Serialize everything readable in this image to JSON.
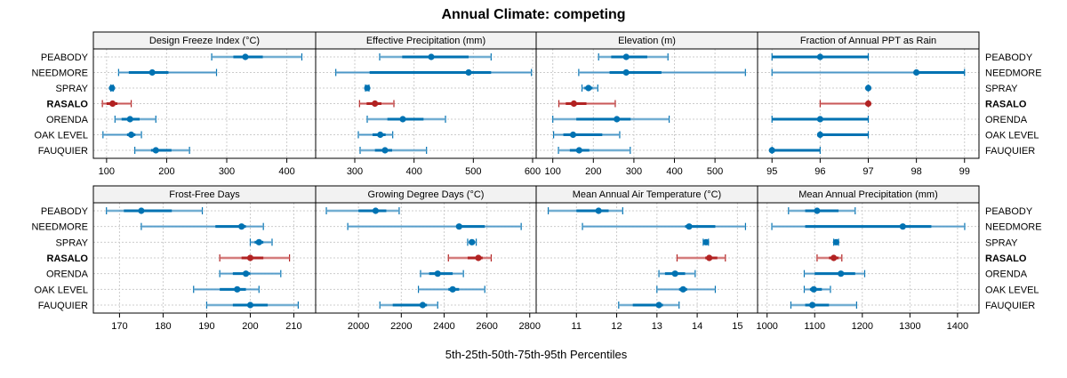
{
  "chart_data": {
    "type": "dotplot-percentiles",
    "title": "Annual Climate: competing",
    "xlabel": "5th-25th-50th-75th-95th Percentiles",
    "sites": [
      "PEABODY",
      "NEEDMORE",
      "SPRAY",
      "RASALO",
      "ORENDA",
      "OAK LEVEL",
      "FAUQUIER"
    ],
    "highlight_site": "RASALO",
    "colors": {
      "default": "#0072b2",
      "highlight": "#b22222",
      "iqr_light": "#7fb3d5",
      "iqr_light_highlight": "#d98080"
    },
    "grid": true,
    "panels": [
      {
        "title": "Design Freeze Index (°C)",
        "xlim": [
          78,
          448
        ],
        "ticks": [
          100,
          200,
          300,
          400
        ],
        "percentiles": {
          "PEABODY": [
            275,
            311,
            331,
            360,
            425
          ],
          "NEEDMORE": [
            120,
            137,
            176,
            203,
            283
          ],
          "SPRAY": [
            107,
            108,
            109,
            110,
            111
          ],
          "RASALO": [
            93,
            100,
            110,
            118,
            141
          ],
          "ORENDA": [
            114,
            125,
            139,
            155,
            182
          ],
          "OAK LEVEL": [
            94,
            134,
            141,
            148,
            158
          ],
          "FAUQUIER": [
            147,
            174,
            182,
            208,
            238
          ]
        }
      },
      {
        "title": "Effective Precipitation (mm)",
        "xlim": [
          234,
          606
        ],
        "ticks": [
          300,
          400,
          500,
          600
        ],
        "percentiles": {
          "PEABODY": [
            342,
            380,
            429,
            492,
            530
          ],
          "NEEDMORE": [
            268,
            325,
            492,
            530,
            598
          ],
          "SPRAY": [
            318,
            319,
            321,
            323,
            324
          ],
          "RASALO": [
            308,
            320,
            334,
            345,
            366
          ],
          "ORENDA": [
            321,
            355,
            381,
            416,
            453
          ],
          "OAK LEVEL": [
            306,
            330,
            343,
            352,
            364
          ],
          "FAUQUIER": [
            309,
            334,
            351,
            363,
            421
          ]
        }
      },
      {
        "title": "Elevation (m)",
        "xlim": [
          59,
          605
        ],
        "ticks": [
          100,
          200,
          300,
          400,
          500
        ],
        "percentiles": {
          "PEABODY": [
            213,
            244,
            281,
            333,
            384
          ],
          "NEEDMORE": [
            164,
            240,
            281,
            368,
            575
          ],
          "SPRAY": [
            172,
            178,
            188,
            198,
            211
          ],
          "RASALO": [
            115,
            132,
            152,
            183,
            254
          ],
          "ORENDA": [
            100,
            158,
            258,
            292,
            387
          ],
          "OAK LEVEL": [
            102,
            126,
            150,
            222,
            265
          ],
          "FAUQUIER": [
            114,
            142,
            165,
            190,
            291
          ]
        }
      },
      {
        "title": "Fraction of Annual PPT as Rain",
        "xlim": [
          94.7,
          99.3
        ],
        "ticks": [
          95,
          96,
          97,
          98,
          99
        ],
        "percentiles": {
          "PEABODY": [
            95,
            95,
            96,
            97,
            97
          ],
          "NEEDMORE": [
            95,
            98,
            98,
            99,
            99
          ],
          "SPRAY": [
            97,
            97,
            97,
            97,
            97
          ],
          "RASALO": [
            96,
            97,
            97,
            97,
            97
          ],
          "ORENDA": [
            95,
            95,
            96,
            97,
            97
          ],
          "OAK LEVEL": [
            96,
            96,
            96,
            97,
            97
          ],
          "FAUQUIER": [
            95,
            95,
            95,
            96,
            96
          ]
        }
      },
      {
        "title": "Frost-Free Days",
        "xlim": [
          164,
          215
        ],
        "ticks": [
          170,
          180,
          190,
          200,
          210
        ],
        "percentiles": {
          "PEABODY": [
            167,
            171,
            175,
            182,
            189
          ],
          "NEEDMORE": [
            175,
            192,
            198,
            199,
            203
          ],
          "SPRAY": [
            200,
            201,
            202,
            203,
            205
          ],
          "RASALO": [
            193,
            198,
            200,
            203,
            209
          ],
          "ORENDA": [
            193,
            196,
            199,
            200,
            207
          ],
          "OAK LEVEL": [
            187,
            193,
            197,
            199,
            202
          ],
          "FAUQUIER": [
            190,
            196,
            200,
            204,
            211
          ]
        }
      },
      {
        "title": "Growing Degree Days (°C)",
        "xlim": [
          1800,
          2830
        ],
        "ticks": [
          2000,
          2200,
          2400,
          2600,
          2800
        ],
        "percentiles": {
          "PEABODY": [
            1850,
            2000,
            2080,
            2130,
            2190
          ],
          "NEEDMORE": [
            1950,
            2460,
            2470,
            2590,
            2760
          ],
          "SPRAY": [
            2510,
            2520,
            2530,
            2540,
            2550
          ],
          "RASALO": [
            2420,
            2510,
            2560,
            2580,
            2620
          ],
          "ORENDA": [
            2290,
            2330,
            2370,
            2440,
            2490
          ],
          "OAK LEVEL": [
            2280,
            2420,
            2440,
            2470,
            2590
          ],
          "FAUQUIER": [
            2100,
            2160,
            2300,
            2320,
            2370
          ]
        }
      },
      {
        "title": "Mean Annual Air Temperature (°C)",
        "xlim": [
          10.0,
          15.5
        ],
        "ticks": [
          11,
          12,
          13,
          14,
          15
        ],
        "percentiles": {
          "PEABODY": [
            10.3,
            11.0,
            11.55,
            11.8,
            12.15
          ],
          "NEEDMORE": [
            11.15,
            13.7,
            13.8,
            14.45,
            15.2
          ],
          "SPRAY": [
            14.15,
            14.18,
            14.22,
            14.25,
            14.28
          ],
          "RASALO": [
            13.5,
            14.2,
            14.3,
            14.5,
            14.7
          ],
          "ORENDA": [
            13.05,
            13.2,
            13.45,
            13.7,
            13.95
          ],
          "OAK LEVEL": [
            13.0,
            13.55,
            13.65,
            13.75,
            14.45
          ],
          "FAUQUIER": [
            12.05,
            12.4,
            13.05,
            13.15,
            13.55
          ]
        }
      },
      {
        "title": "Mean Annual Precipitation (mm)",
        "xlim": [
          980,
          1445
        ],
        "ticks": [
          1000,
          1100,
          1200,
          1300,
          1400
        ],
        "percentiles": {
          "PEABODY": [
            1045,
            1080,
            1105,
            1150,
            1185
          ],
          "NEEDMORE": [
            1010,
            1080,
            1285,
            1345,
            1415
          ],
          "SPRAY": [
            1140,
            1142,
            1145,
            1147,
            1150
          ],
          "RASALO": [
            1105,
            1130,
            1140,
            1150,
            1157
          ],
          "ORENDA": [
            1078,
            1100,
            1155,
            1185,
            1205
          ],
          "OAK LEVEL": [
            1078,
            1090,
            1098,
            1115,
            1133
          ],
          "FAUQUIER": [
            1050,
            1080,
            1095,
            1130,
            1188
          ]
        }
      }
    ]
  }
}
